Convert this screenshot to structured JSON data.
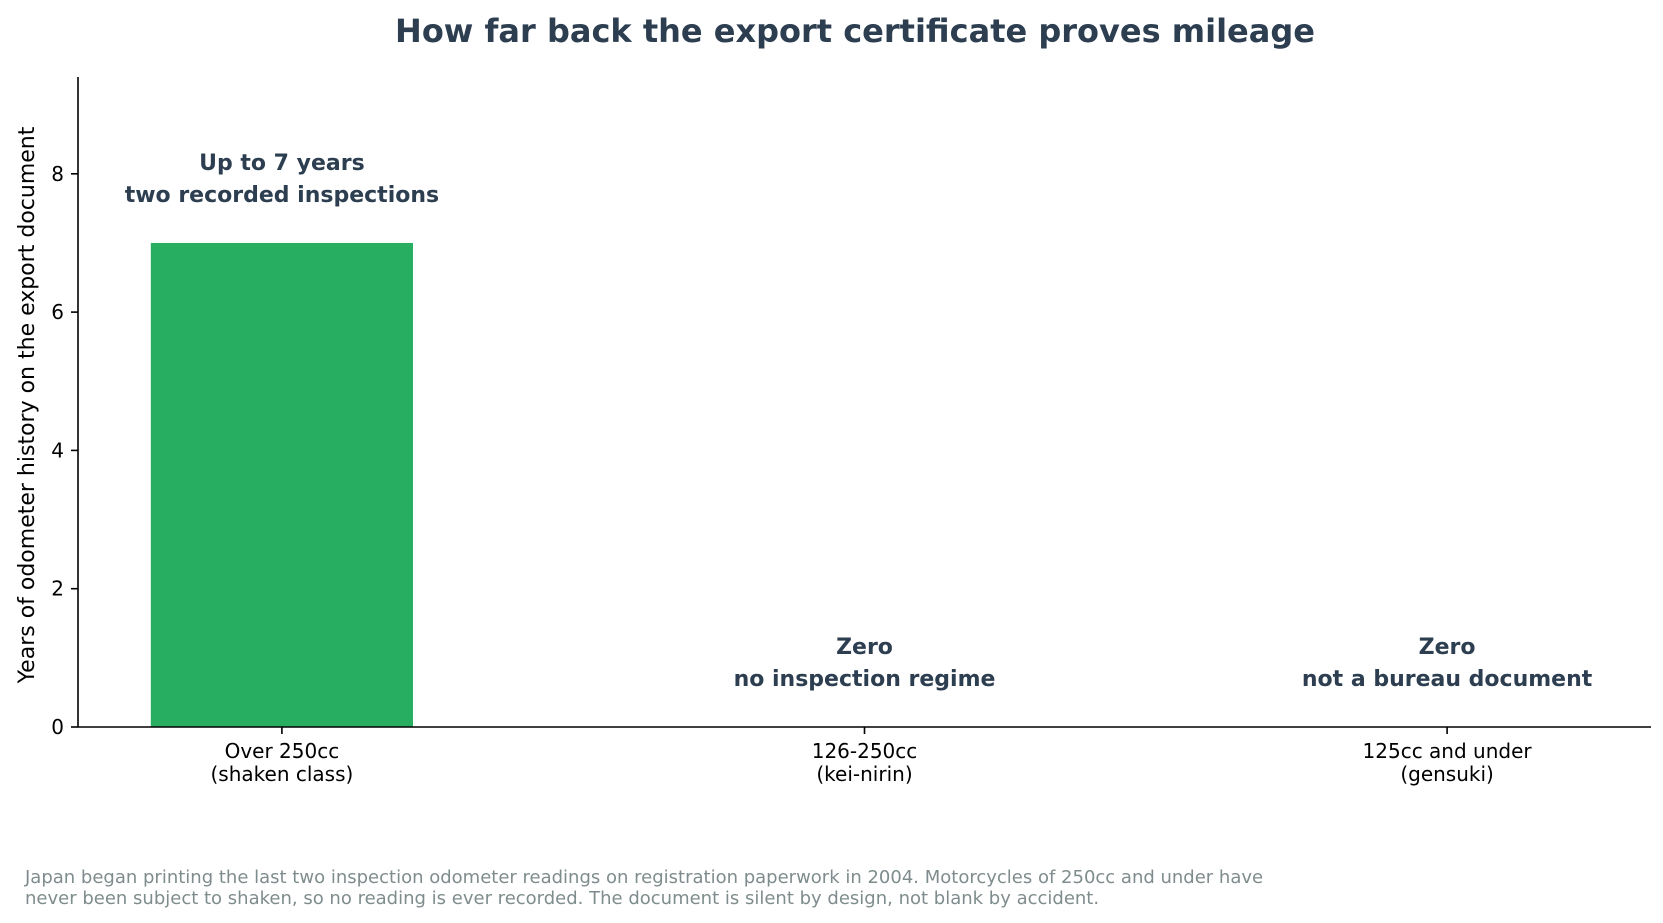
{
  "chart_data": {
    "type": "bar",
    "title": "How far back the export certificate proves mileage",
    "xlabel": "",
    "ylabel": "Years of odometer history on the export document",
    "ylim": [
      0,
      9.4
    ],
    "yticks": [
      0,
      2,
      4,
      6,
      8
    ],
    "grid": false,
    "categories": [
      [
        "Over 250cc",
        "(shaken class)"
      ],
      [
        "126-250cc",
        "(kei-nirin)"
      ],
      [
        "125cc and under",
        "(gensuki)"
      ]
    ],
    "values": [
      7,
      0,
      0
    ],
    "bar_color": "#27ae60",
    "annotations": [
      [
        "Up to 7 years",
        "two recorded inspections"
      ],
      [
        "Zero",
        "no inspection regime"
      ],
      [
        "Zero",
        "not a bureau document"
      ]
    ],
    "footnote": [
      "Japan began printing the last two inspection odometer readings on registration paperwork in 2004. Motorcycles of 250cc and under have",
      "never been subject to shaken, so no reading is ever recorded. The document is silent by design, not blank by accident."
    ]
  }
}
